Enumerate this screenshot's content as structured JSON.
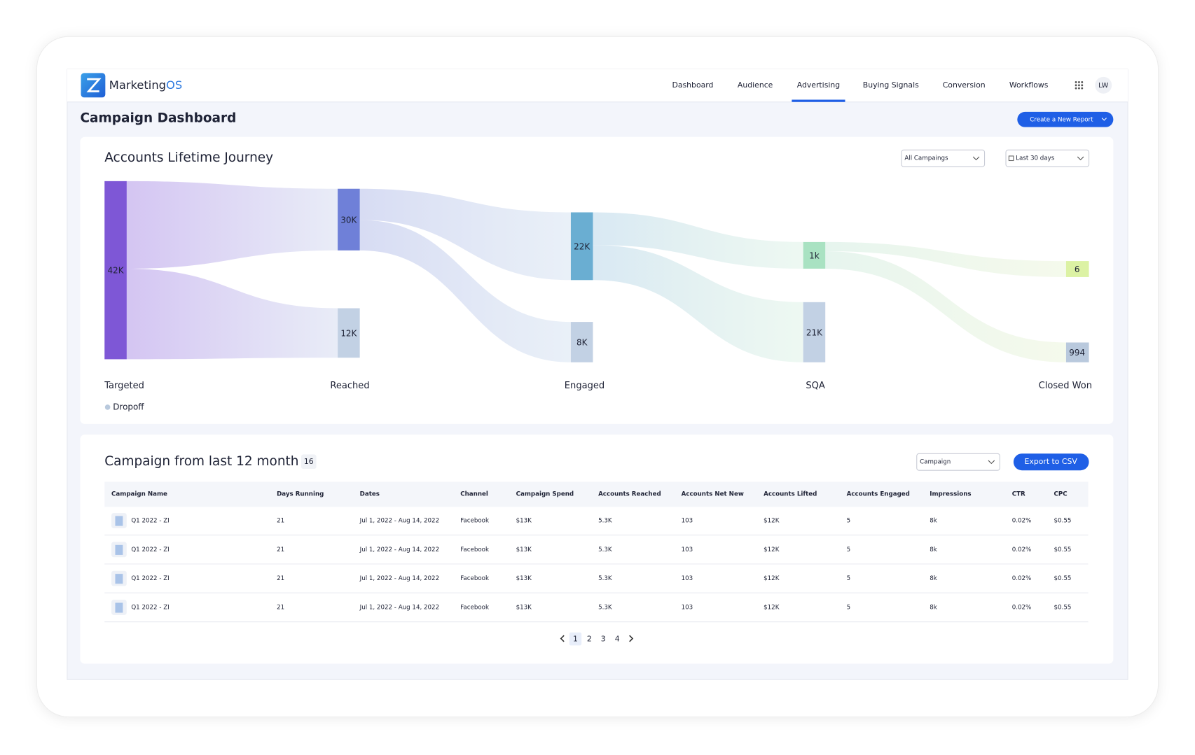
{
  "nav": {
    "brand": "Marketing",
    "brand_suffix": "OS",
    "items": [
      "Dashboard",
      "Audience",
      "Advertising",
      "Buying Signals",
      "Conversion",
      "Workflows"
    ],
    "active": "Advertising",
    "user": "LW"
  },
  "page": {
    "title": "Campaign Dashboard",
    "button": "Create a New Report"
  },
  "journey": {
    "title": "Accounts Lifetime Journey",
    "filters": [
      "All Campaings",
      "Last 30 days"
    ],
    "stages": [
      {
        "label": "Targeted",
        "nodes": [
          {
            "value": "42K"
          }
        ]
      },
      {
        "label": "Reached",
        "nodes": [
          {
            "value": "30K"
          },
          {
            "value": "12K"
          }
        ]
      },
      {
        "label": "Engaged",
        "nodes": [
          {
            "value": "22K"
          },
          {
            "value": "8K"
          }
        ]
      },
      {
        "label": "SQA",
        "nodes": [
          {
            "value": "1k"
          },
          {
            "value": "21K"
          }
        ]
      },
      {
        "label": "Closed Won",
        "nodes": [
          {
            "value": "6"
          },
          {
            "value": "994"
          }
        ]
      }
    ],
    "legend": "Dropoff"
  },
  "campaigns": {
    "title": "Campaign from last 12 month",
    "count": "16",
    "filter": "Campaign",
    "export": "Export to CSV",
    "columns": [
      "Campaign Name",
      "Days Running",
      "Dates",
      "Channel",
      "Campaign Spend",
      "Accounts Reached",
      "Accounts Net New",
      "Accounts Lifted",
      "Accounts Engaged",
      "Impressions",
      "CTR",
      "CPC"
    ],
    "rows": [
      [
        "Q1 2022 - ZI",
        "21",
        "Jul 1, 2022 - Aug 14, 2022",
        "Facebook",
        "$13K",
        "5.3K",
        "103",
        "$12K",
        "5",
        "8k",
        "0.02%",
        "$0.55"
      ],
      [
        "Q1 2022 - ZI",
        "21",
        "Jul 1, 2022 - Aug 14, 2022",
        "Facebook",
        "$13K",
        "5.3K",
        "103",
        "$12K",
        "5",
        "8k",
        "0.02%",
        "$0.55"
      ],
      [
        "Q1 2022 - ZI",
        "21",
        "Jul 1, 2022 - Aug 14, 2022",
        "Facebook",
        "$13K",
        "5.3K",
        "103",
        "$12K",
        "5",
        "8k",
        "0.02%",
        "$0.55"
      ],
      [
        "Q1 2022 - ZI",
        "21",
        "Jul 1, 2022 - Aug 14, 2022",
        "Facebook",
        "$13K",
        "5.3K",
        "103",
        "$12K",
        "5",
        "8k",
        "0.02%",
        "$0.55"
      ]
    ],
    "pagination": [
      "1",
      "2",
      "3",
      "4"
    ],
    "current_page": "1"
  }
}
